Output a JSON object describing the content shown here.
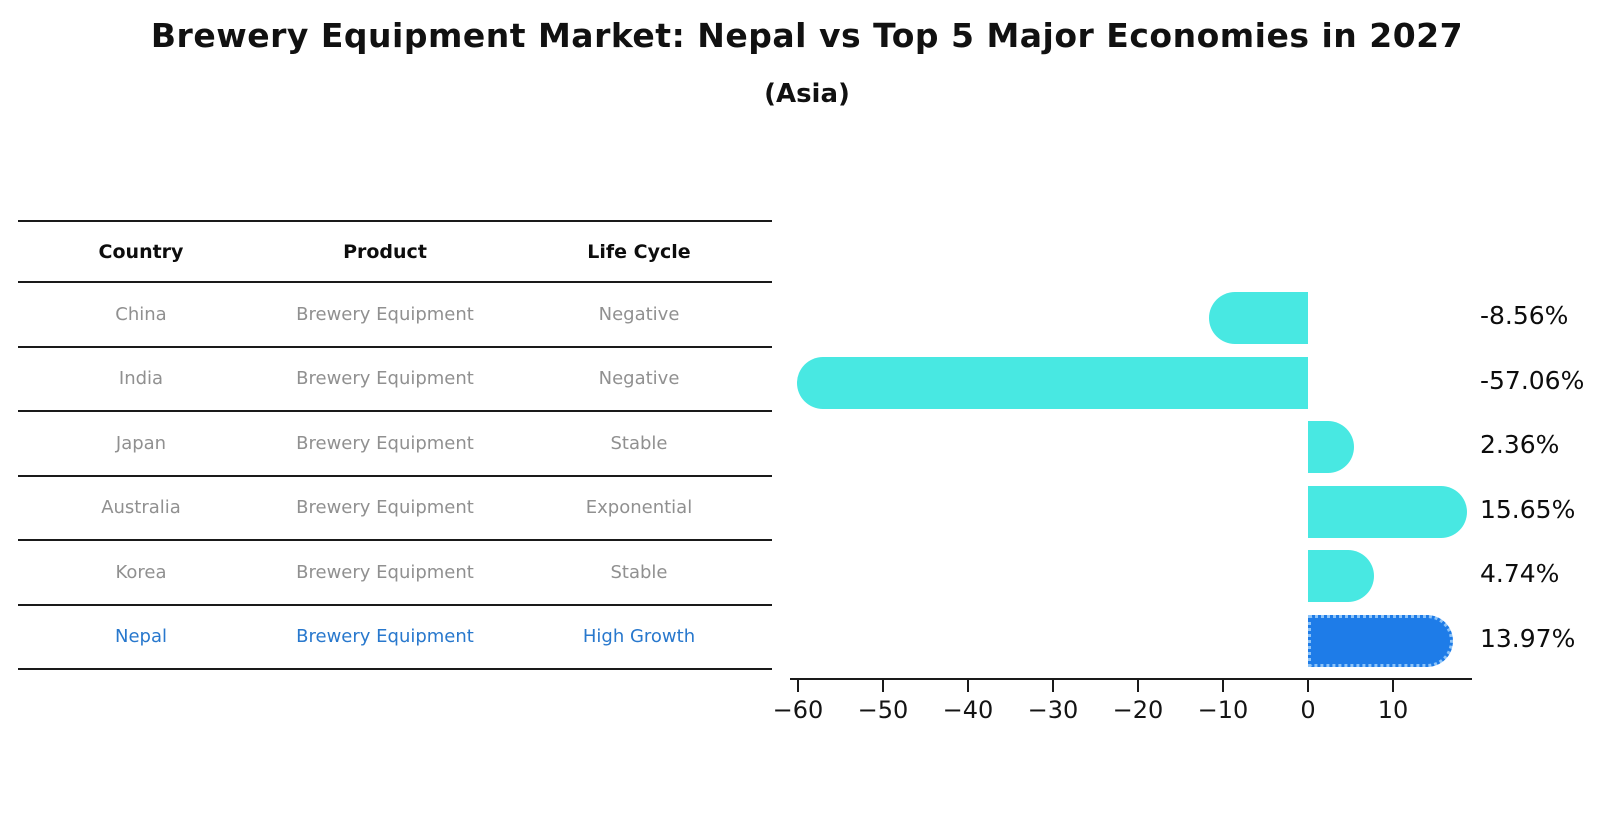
{
  "title": "Brewery Equipment Market: Nepal vs Top 5 Major Economies in 2027",
  "subtitle": "(Asia)",
  "table": {
    "headers": [
      "Country",
      "Product",
      "Life Cycle"
    ],
    "rows": [
      {
        "country": "China",
        "product": "Brewery Equipment",
        "life_cycle": "Negative",
        "highlight": false
      },
      {
        "country": "India",
        "product": "Brewery Equipment",
        "life_cycle": "Negative",
        "highlight": false
      },
      {
        "country": "Japan",
        "product": "Brewery Equipment",
        "life_cycle": "Stable",
        "highlight": false
      },
      {
        "country": "Australia",
        "product": "Brewery Equipment",
        "life_cycle": "Exponential",
        "highlight": false
      },
      {
        "country": "Korea",
        "product": "Brewery Equipment",
        "life_cycle": "Stable",
        "highlight": false
      },
      {
        "country": "Nepal",
        "product": "Brewery Equipment",
        "life_cycle": "High Growth",
        "highlight": true
      }
    ]
  },
  "chart_data": {
    "type": "bar",
    "orientation": "horizontal",
    "categories": [
      "China",
      "India",
      "Japan",
      "Australia",
      "Korea",
      "Nepal"
    ],
    "values": [
      -8.56,
      -57.06,
      2.36,
      15.65,
      4.74,
      13.97
    ],
    "value_labels": [
      "-8.56%",
      "-57.06%",
      "2.36%",
      "15.65%",
      "4.74%",
      "13.97%"
    ],
    "highlight_index": 5,
    "x_ticks": [
      -60,
      -50,
      -40,
      -30,
      -20,
      -10,
      0,
      10
    ],
    "x_tick_labels": [
      "−60",
      "−50",
      "−40",
      "−30",
      "−20",
      "−10",
      "0",
      "10"
    ],
    "xlim": [
      -61,
      19.2
    ],
    "grid": false,
    "legend": false,
    "bar_color": "#48e8e2",
    "highlight_bar_color": "#1e7ce8",
    "highlight_text_color": "#2878cd",
    "row_text_color": "#909090"
  }
}
